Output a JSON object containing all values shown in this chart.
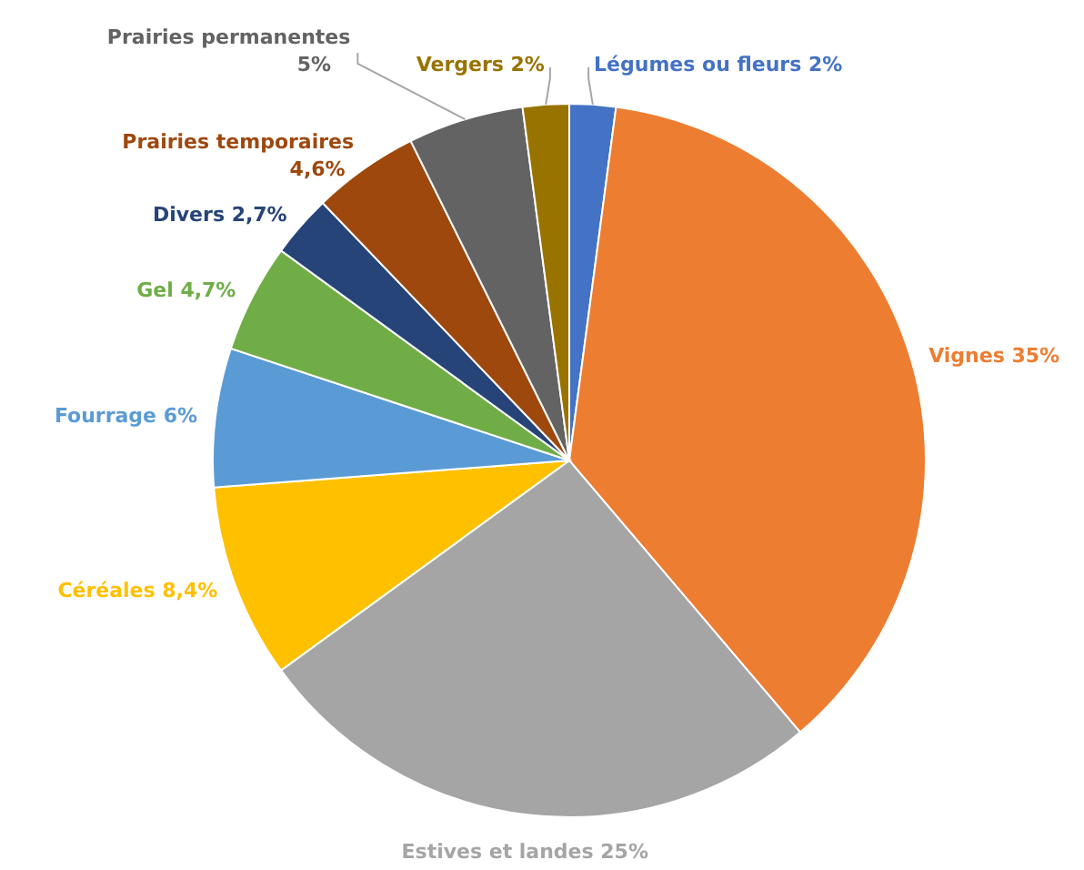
{
  "chart_data": {
    "type": "pie",
    "categories": [
      "Légumes ou fleurs",
      "Vignes",
      "Estives et landes",
      "Céréales",
      "Fourrage",
      "Gel",
      "Divers",
      "Prairies temporaires",
      "Prairies permanentes",
      "Vergers"
    ],
    "values": [
      2,
      35,
      25,
      8.4,
      6,
      4.7,
      2.7,
      4.6,
      5,
      2
    ],
    "value_labels": [
      "2%",
      "35%",
      "25%",
      "8,4%",
      "6%",
      "4,7%",
      "2,7%",
      "4,6%",
      "5%",
      "2%"
    ],
    "colors": [
      "#4472c4",
      "#ed7d31",
      "#a5a5a5",
      "#ffc000",
      "#5b9bd5",
      "#70ad47",
      "#264478",
      "#9e480e",
      "#636363",
      "#997300"
    ],
    "legend": false
  }
}
